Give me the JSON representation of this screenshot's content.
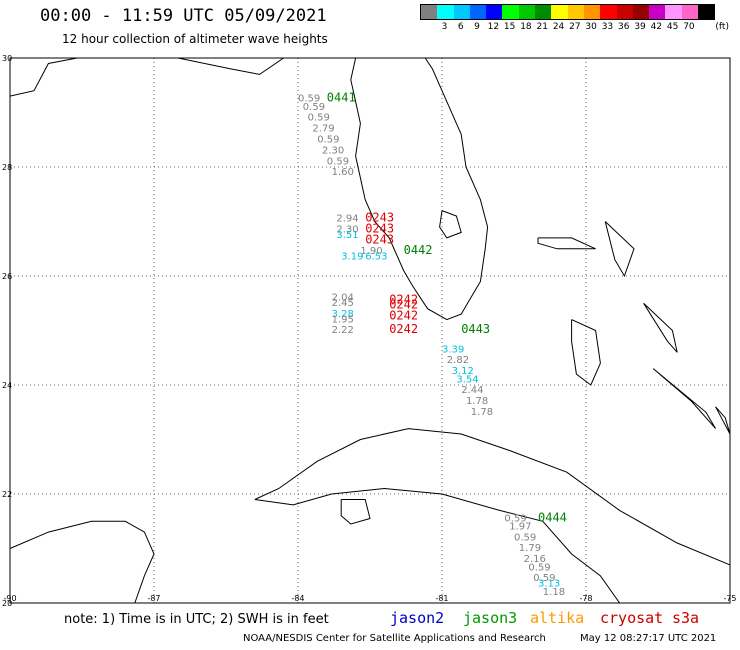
{
  "header": {
    "title": "00:00 - 11:59 UTC 05/09/2021",
    "subtitle": "12 hour collection of altimeter wave heights"
  },
  "legend": {
    "unit": "(ft)",
    "bins": [
      {
        "label": "",
        "color": "#808080"
      },
      {
        "label": "3",
        "color": "#00ffff"
      },
      {
        "label": "6",
        "color": "#00c8ff"
      },
      {
        "label": "9",
        "color": "#0064ff"
      },
      {
        "label": "12",
        "color": "#0000ff"
      },
      {
        "label": "15",
        "color": "#00ff00"
      },
      {
        "label": "18",
        "color": "#00c800"
      },
      {
        "label": "21",
        "color": "#008c00"
      },
      {
        "label": "24",
        "color": "#ffff00"
      },
      {
        "label": "27",
        "color": "#ffc800"
      },
      {
        "label": "30",
        "color": "#ff9600"
      },
      {
        "label": "33",
        "color": "#ff0000"
      },
      {
        "label": "36",
        "color": "#c80000"
      },
      {
        "label": "39",
        "color": "#960000"
      },
      {
        "label": "42",
        "color": "#c800c8"
      },
      {
        "label": "45",
        "color": "#ff96ff"
      },
      {
        "label": "70",
        "color": "#ff64c8"
      },
      {
        "label": "",
        "color": "#000000"
      }
    ]
  },
  "map": {
    "lon_range": [
      -90,
      -75
    ],
    "lat_range": [
      20,
      30
    ],
    "lon_ticks": [
      -90,
      -87,
      -84,
      -81,
      -78,
      -75
    ],
    "lat_ticks": [
      20,
      22,
      24,
      26,
      28,
      30
    ],
    "lon_tick_labels": [
      "-90",
      "-87",
      "-84",
      "-81",
      "-78",
      "-75"
    ],
    "lat_tick_labels": [
      "20",
      "22",
      "24",
      "26",
      "28",
      "30"
    ],
    "coast_color": "#000000",
    "grid": "dotted",
    "pass_labels": [
      {
        "text": "0441",
        "lon": -83.4,
        "lat": 29.2,
        "color": "#008000"
      },
      {
        "text": "0243",
        "lon": -82.6,
        "lat": 27.0,
        "color": "#e00000"
      },
      {
        "text": "0243",
        "lon": -82.6,
        "lat": 26.8,
        "color": "#e00000"
      },
      {
        "text": "0243",
        "lon": -82.6,
        "lat": 26.6,
        "color": "#e00000"
      },
      {
        "text": "0442",
        "lon": -81.8,
        "lat": 26.4,
        "color": "#008000"
      },
      {
        "text": "0242",
        "lon": -82.1,
        "lat": 25.5,
        "color": "#e00000"
      },
      {
        "text": "0242",
        "lon": -82.1,
        "lat": 25.4,
        "color": "#e00000"
      },
      {
        "text": "0242",
        "lon": -82.1,
        "lat": 25.2,
        "color": "#e00000"
      },
      {
        "text": "0242",
        "lon": -82.1,
        "lat": 24.95,
        "color": "#e00000"
      },
      {
        "text": "0443",
        "lon": -80.6,
        "lat": 24.95,
        "color": "#008000"
      },
      {
        "text": "0444",
        "lon": -79.0,
        "lat": 21.5,
        "color": "#008000"
      }
    ],
    "wave_heights": [
      {
        "text": "0.59",
        "lon": -84.0,
        "lat": 29.2,
        "color": "#808080"
      },
      {
        "text": "0.59",
        "lon": -83.9,
        "lat": 29.05,
        "color": "#808080"
      },
      {
        "text": "0.59",
        "lon": -83.8,
        "lat": 28.85,
        "color": "#808080"
      },
      {
        "text": "2.79",
        "lon": -83.7,
        "lat": 28.65,
        "color": "#808080"
      },
      {
        "text": "0.59",
        "lon": -83.6,
        "lat": 28.45,
        "color": "#808080"
      },
      {
        "text": "2.30",
        "lon": -83.5,
        "lat": 28.25,
        "color": "#808080"
      },
      {
        "text": "0.59",
        "lon": -83.4,
        "lat": 28.05,
        "color": "#808080"
      },
      {
        "text": "1.60",
        "lon": -83.3,
        "lat": 27.85,
        "color": "#808080"
      },
      {
        "text": "2.94",
        "lon": -83.2,
        "lat": 27.0,
        "color": "#808080"
      },
      {
        "text": "2.30",
        "lon": -83.2,
        "lat": 26.8,
        "color": "#808080"
      },
      {
        "text": "3.51",
        "lon": -83.2,
        "lat": 26.7,
        "color": "#00c0e0"
      },
      {
        "text": "1.90",
        "lon": -82.7,
        "lat": 26.4,
        "color": "#808080"
      },
      {
        "text": "3.19",
        "lon": -83.1,
        "lat": 26.3,
        "color": "#00c0e0"
      },
      {
        "text": "6.53",
        "lon": -82.6,
        "lat": 26.3,
        "color": "#00c0e0"
      },
      {
        "text": "2.04",
        "lon": -83.3,
        "lat": 25.55,
        "color": "#808080"
      },
      {
        "text": "2.45",
        "lon": -83.3,
        "lat": 25.45,
        "color": "#808080"
      },
      {
        "text": "3.28",
        "lon": -83.3,
        "lat": 25.25,
        "color": "#00c0e0"
      },
      {
        "text": "1.95",
        "lon": -83.3,
        "lat": 25.15,
        "color": "#808080"
      },
      {
        "text": "2.22",
        "lon": -83.3,
        "lat": 24.95,
        "color": "#808080"
      },
      {
        "text": "3.39",
        "lon": -81.0,
        "lat": 24.6,
        "color": "#00c0e0"
      },
      {
        "text": "2.82",
        "lon": -80.9,
        "lat": 24.4,
        "color": "#808080"
      },
      {
        "text": "3.12",
        "lon": -80.8,
        "lat": 24.2,
        "color": "#00c0e0"
      },
      {
        "text": "3.54",
        "lon": -80.7,
        "lat": 24.05,
        "color": "#00c0e0"
      },
      {
        "text": "2.44",
        "lon": -80.6,
        "lat": 23.85,
        "color": "#808080"
      },
      {
        "text": "1.78",
        "lon": -80.5,
        "lat": 23.65,
        "color": "#808080"
      },
      {
        "text": "1.78",
        "lon": -80.4,
        "lat": 23.45,
        "color": "#808080"
      },
      {
        "text": "0.59",
        "lon": -79.7,
        "lat": 21.5,
        "color": "#808080"
      },
      {
        "text": "1.97",
        "lon": -79.6,
        "lat": 21.35,
        "color": "#808080"
      },
      {
        "text": "0.59",
        "lon": -79.5,
        "lat": 21.15,
        "color": "#808080"
      },
      {
        "text": "1.79",
        "lon": -79.4,
        "lat": 20.95,
        "color": "#808080"
      },
      {
        "text": "2.16",
        "lon": -79.3,
        "lat": 20.75,
        "color": "#808080"
      },
      {
        "text": "0.59",
        "lon": -79.2,
        "lat": 20.6,
        "color": "#808080"
      },
      {
        "text": "0.59",
        "lon": -79.1,
        "lat": 20.4,
        "color": "#808080"
      },
      {
        "text": "3.13",
        "lon": -79.0,
        "lat": 20.3,
        "color": "#00c0e0"
      },
      {
        "text": "1.18",
        "lon": -78.9,
        "lat": 20.15,
        "color": "#808080"
      }
    ],
    "coastlines": [
      {
        "name": "florida",
        "points": [
          [
            -82.8,
            30
          ],
          [
            -82.9,
            29.6
          ],
          [
            -82.8,
            29.2
          ],
          [
            -82.7,
            28.8
          ],
          [
            -82.8,
            28.2
          ],
          [
            -82.7,
            27.8
          ],
          [
            -82.6,
            27.4
          ],
          [
            -82.4,
            27.0
          ],
          [
            -82.1,
            26.7
          ],
          [
            -81.8,
            26.1
          ],
          [
            -81.6,
            25.8
          ],
          [
            -81.3,
            25.4
          ],
          [
            -80.9,
            25.2
          ],
          [
            -80.6,
            25.3
          ],
          [
            -80.4,
            25.6
          ],
          [
            -80.2,
            25.9
          ],
          [
            -80.1,
            26.5
          ],
          [
            -80.05,
            26.9
          ],
          [
            -80.2,
            27.4
          ],
          [
            -80.5,
            28.0
          ],
          [
            -80.6,
            28.6
          ],
          [
            -80.9,
            29.2
          ],
          [
            -81.2,
            29.8
          ],
          [
            -81.35,
            30
          ]
        ]
      },
      {
        "name": "gulf-coast-nw",
        "points": [
          [
            -90,
            29.3
          ],
          [
            -89.5,
            29.4
          ],
          [
            -89.2,
            29.9
          ],
          [
            -88.6,
            30
          ],
          [
            -86.5,
            30
          ],
          [
            -85.4,
            29.8
          ],
          [
            -84.8,
            29.7
          ],
          [
            -84.3,
            30
          ],
          [
            -83.5,
            30
          ],
          [
            -82.8,
            30
          ]
        ]
      },
      {
        "name": "yucatan",
        "points": [
          [
            -90,
            21.0
          ],
          [
            -89.2,
            21.3
          ],
          [
            -88.3,
            21.5
          ],
          [
            -87.6,
            21.5
          ],
          [
            -87.2,
            21.3
          ],
          [
            -87.0,
            20.9
          ],
          [
            -87.2,
            20.5
          ],
          [
            -87.4,
            20.0
          ]
        ]
      },
      {
        "name": "cuba",
        "points": [
          [
            -84.9,
            21.9
          ],
          [
            -84.4,
            22.1
          ],
          [
            -83.6,
            22.6
          ],
          [
            -82.7,
            23.0
          ],
          [
            -81.7,
            23.2
          ],
          [
            -80.6,
            23.1
          ],
          [
            -79.6,
            22.8
          ],
          [
            -78.4,
            22.4
          ],
          [
            -77.3,
            21.7
          ],
          [
            -76.1,
            21.1
          ],
          [
            -75.0,
            20.7
          ],
          [
            -75.0,
            20.0
          ],
          [
            -76.4,
            20.0
          ],
          [
            -77.3,
            20.0
          ],
          [
            -77.7,
            20.5
          ],
          [
            -78.3,
            20.9
          ],
          [
            -78.9,
            21.5
          ],
          [
            -79.8,
            21.7
          ],
          [
            -81.0,
            22.0
          ],
          [
            -82.2,
            22.1
          ],
          [
            -83.3,
            22.0
          ],
          [
            -84.1,
            21.8
          ],
          [
            -84.9,
            21.9
          ]
        ]
      },
      {
        "name": "isla-juventud",
        "points": [
          [
            -83.1,
            21.9
          ],
          [
            -82.6,
            21.9
          ],
          [
            -82.5,
            21.55
          ],
          [
            -82.9,
            21.45
          ],
          [
            -83.1,
            21.6
          ],
          [
            -83.1,
            21.9
          ]
        ]
      },
      {
        "name": "andros",
        "points": [
          [
            -78.3,
            25.2
          ],
          [
            -77.8,
            25.0
          ],
          [
            -77.7,
            24.4
          ],
          [
            -77.9,
            24.0
          ],
          [
            -78.2,
            24.2
          ],
          [
            -78.3,
            24.8
          ],
          [
            -78.3,
            25.2
          ]
        ]
      },
      {
        "name": "grand-bahama",
        "points": [
          [
            -79.0,
            26.7
          ],
          [
            -78.3,
            26.7
          ],
          [
            -77.8,
            26.5
          ],
          [
            -78.6,
            26.5
          ],
          [
            -79.0,
            26.6
          ],
          [
            -79.0,
            26.7
          ]
        ]
      },
      {
        "name": "abaco",
        "points": [
          [
            -77.6,
            27.0
          ],
          [
            -77.0,
            26.5
          ],
          [
            -77.2,
            26.0
          ],
          [
            -77.4,
            26.3
          ],
          [
            -77.6,
            27.0
          ]
        ]
      },
      {
        "name": "eleuthera",
        "points": [
          [
            -76.8,
            25.5
          ],
          [
            -76.2,
            25.0
          ],
          [
            -76.1,
            24.6
          ],
          [
            -76.3,
            24.8
          ],
          [
            -76.8,
            25.5
          ]
        ]
      },
      {
        "name": "cat-exuma",
        "points": [
          [
            -76.6,
            24.3
          ],
          [
            -75.8,
            23.7
          ],
          [
            -75.3,
            23.2
          ],
          [
            -75.5,
            23.5
          ],
          [
            -76.6,
            24.3
          ]
        ]
      },
      {
        "name": "long-island",
        "points": [
          [
            -75.3,
            23.6
          ],
          [
            -75.0,
            23.1
          ],
          [
            -75.1,
            23.4
          ],
          [
            -75.3,
            23.6
          ]
        ]
      },
      {
        "name": "lake-okeechobee",
        "points": [
          [
            -81.0,
            27.2
          ],
          [
            -80.7,
            27.1
          ],
          [
            -80.6,
            26.8
          ],
          [
            -80.9,
            26.7
          ],
          [
            -81.05,
            26.9
          ],
          [
            -81.0,
            27.2
          ]
        ]
      }
    ]
  },
  "footer": {
    "note": "note: 1) Time is in UTC; 2) SWH is in feet",
    "missions": [
      {
        "name": "jason2",
        "color": "#0000cc"
      },
      {
        "name": "jason3",
        "color": "#009900"
      },
      {
        "name": "altika",
        "color": "#ff9900"
      },
      {
        "name": "cryosat",
        "color": "#cc0000"
      },
      {
        "name": "s3a",
        "color": "#cc0000"
      }
    ],
    "credit": "NOAA/NESDIS Center for Satellite Applications and Research",
    "timestamp": "May 12 08:27:17 UTC 2021"
  }
}
